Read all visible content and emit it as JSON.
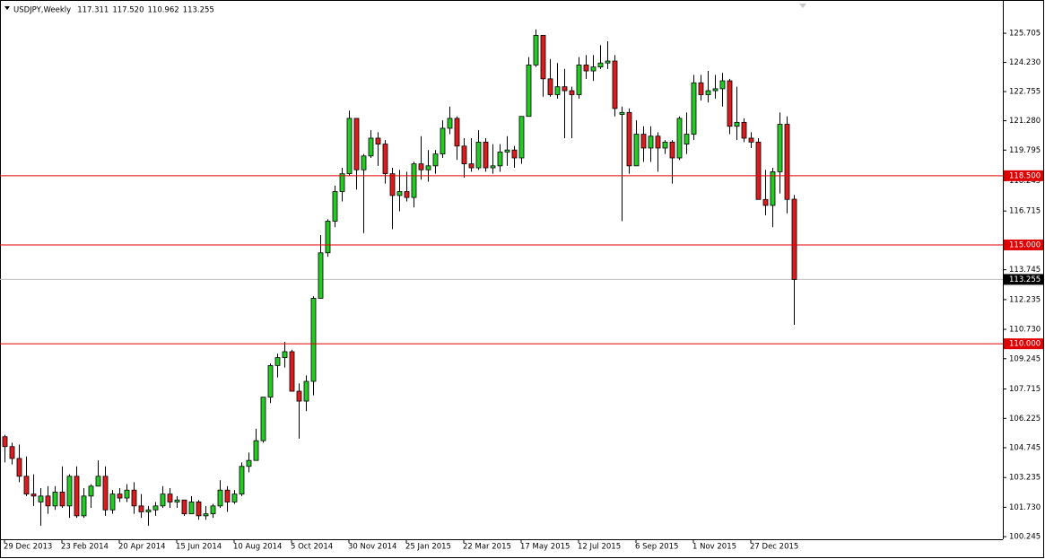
{
  "chart_data": {
    "type": "candlestick",
    "symbol": "USDJPY,Weekly",
    "header_ohlc": [
      "117.311",
      "117.520",
      "110.962",
      "113.255"
    ],
    "categories": [
      "29 Dec 2013",
      null,
      null,
      null,
      null,
      null,
      null,
      null,
      "23 Feb 2014",
      null,
      null,
      null,
      null,
      null,
      null,
      null,
      "20 Apr 2014",
      null,
      null,
      null,
      null,
      null,
      null,
      null,
      "15 Jun 2014",
      null,
      null,
      null,
      null,
      null,
      null,
      null,
      "10 Aug 2014",
      null,
      null,
      null,
      null,
      null,
      null,
      null,
      "5 Oct 2014",
      null,
      null,
      null,
      null,
      null,
      null,
      null,
      "30 Nov 2014",
      null,
      null,
      null,
      null,
      null,
      null,
      null,
      "25 Jan 2015",
      null,
      null,
      null,
      null,
      null,
      null,
      null,
      "22 Mar 2015",
      null,
      null,
      null,
      null,
      null,
      null,
      null,
      "17 May 2015",
      null,
      null,
      null,
      null,
      null,
      null,
      null,
      "12 Jul 2015",
      null,
      null,
      null,
      null,
      null,
      null,
      null,
      "6 Sep 2015",
      null,
      null,
      null,
      null,
      null,
      null,
      null,
      "1 Nov 2015",
      null,
      null,
      null,
      null,
      null,
      null,
      null,
      "27 Dec 2015",
      null,
      null,
      null,
      null,
      null,
      null
    ],
    "open": [
      105.3,
      104.8,
      104.2,
      103.3,
      102.4,
      102.0,
      102.3,
      101.8,
      102.5,
      101.8,
      103.3,
      101.3,
      102.3,
      102.8,
      103.3,
      101.6,
      102.4,
      102.2,
      102.6,
      101.8,
      101.5,
      101.6,
      101.8,
      102.4,
      102.0,
      102.1,
      101.4,
      102.0,
      101.3,
      101.4,
      101.8,
      102.6,
      102.0,
      102.4,
      103.8,
      104.1,
      105.1,
      107.3,
      108.9,
      109.3,
      109.6,
      107.6,
      107.1,
      108.1,
      112.3,
      114.6,
      116.2,
      117.7,
      118.6,
      121.4,
      118.8,
      119.5,
      120.4,
      120.1,
      118.6,
      117.5,
      117.7,
      117.4,
      119.1,
      118.8,
      119.0,
      119.6,
      120.9,
      121.4,
      120.0,
      119.1,
      118.9,
      120.2,
      118.9,
      119.0,
      119.7,
      119.8,
      119.4,
      121.5,
      124.1,
      125.6,
      123.4,
      122.6,
      123.0,
      122.8,
      122.6,
      124.1,
      123.8,
      124.0,
      124.2,
      124.3,
      121.6,
      121.7,
      119.0,
      120.6,
      119.9,
      120.5,
      119.9,
      120.2,
      119.4,
      120.1,
      120.6,
      123.2,
      122.6,
      122.8,
      122.9,
      123.3,
      121.0,
      121.2,
      120.4,
      120.2,
      117.3,
      117.0,
      118.7,
      121.1,
      117.311
    ],
    "high": [
      105.4,
      105.0,
      104.9,
      104.3,
      103.4,
      102.7,
      102.8,
      102.8,
      103.8,
      103.4,
      103.8,
      102.7,
      102.9,
      104.1,
      103.8,
      102.6,
      102.7,
      102.9,
      103.0,
      102.4,
      101.8,
      102.0,
      102.8,
      102.7,
      102.3,
      102.1,
      102.3,
      102.1,
      101.8,
      101.9,
      103.1,
      102.8,
      102.6,
      104.0,
      104.5,
      105.7,
      107.3,
      109.0,
      109.5,
      110.1,
      109.7,
      108.0,
      108.4,
      112.4,
      115.5,
      116.3,
      118.0,
      118.9,
      121.8,
      121.4,
      119.6,
      120.8,
      120.7,
      120.3,
      118.9,
      118.8,
      118.7,
      119.2,
      120.5,
      119.8,
      119.8,
      121.3,
      122.0,
      121.5,
      120.4,
      120.4,
      120.8,
      120.4,
      120.1,
      120.1,
      120.5,
      120.0,
      121.5,
      124.5,
      125.9,
      125.6,
      124.4,
      124.2,
      123.9,
      123.0,
      124.5,
      124.6,
      124.6,
      125.1,
      125.3,
      124.6,
      122.0,
      121.9,
      121.3,
      121.0,
      121.0,
      120.7,
      120.3,
      120.3,
      121.5,
      121.7,
      123.6,
      123.6,
      123.8,
      123.6,
      123.7,
      123.4,
      123.0,
      121.4,
      120.7,
      120.4,
      118.8,
      118.9,
      121.7,
      121.5,
      117.52
    ],
    "low": [
      104.0,
      103.9,
      103.0,
      102.3,
      101.8,
      100.8,
      101.4,
      101.6,
      101.7,
      101.2,
      101.2,
      101.2,
      101.7,
      102.8,
      101.3,
      101.4,
      102.0,
      102.0,
      101.4,
      101.2,
      100.8,
      101.3,
      101.7,
      101.7,
      101.7,
      101.3,
      101.4,
      101.1,
      101.1,
      101.2,
      101.7,
      101.5,
      101.9,
      102.3,
      103.5,
      104.1,
      105.0,
      107.0,
      108.3,
      108.8,
      107.6,
      105.2,
      106.6,
      107.4,
      112.3,
      114.4,
      115.9,
      117.2,
      118.5,
      117.8,
      115.6,
      119.4,
      119.0,
      118.1,
      115.8,
      116.7,
      117.2,
      116.9,
      118.3,
      118.2,
      118.6,
      119.4,
      120.6,
      119.3,
      118.4,
      118.7,
      118.8,
      118.7,
      118.6,
      118.7,
      119.0,
      118.9,
      119.1,
      121.5,
      124.0,
      122.5,
      122.5,
      122.4,
      120.4,
      120.4,
      122.4,
      123.4,
      123.3,
      123.9,
      123.9,
      121.5,
      116.2,
      118.6,
      119.0,
      119.2,
      119.2,
      118.7,
      119.6,
      118.1,
      119.3,
      119.6,
      120.3,
      122.3,
      122.2,
      122.4,
      122.0,
      120.6,
      120.3,
      120.2,
      119.9,
      117.3,
      116.5,
      115.9,
      117.6,
      116.6,
      110.962
    ],
    "close": [
      104.8,
      104.2,
      103.3,
      102.4,
      102.3,
      102.3,
      101.8,
      102.5,
      101.8,
      103.3,
      101.3,
      102.3,
      102.8,
      103.3,
      101.6,
      102.4,
      102.2,
      102.6,
      101.8,
      101.5,
      101.6,
      101.8,
      102.4,
      102.0,
      102.1,
      101.4,
      102.0,
      101.3,
      101.4,
      101.8,
      102.6,
      102.0,
      102.4,
      103.8,
      104.1,
      105.1,
      107.3,
      108.9,
      109.3,
      109.6,
      107.6,
      107.1,
      108.1,
      112.3,
      114.6,
      116.2,
      117.7,
      118.6,
      121.4,
      118.8,
      119.5,
      120.4,
      120.1,
      118.6,
      117.5,
      117.7,
      117.4,
      119.1,
      118.8,
      119.0,
      119.6,
      120.9,
      121.4,
      120.0,
      119.1,
      118.9,
      120.2,
      118.9,
      119.0,
      119.7,
      119.8,
      119.4,
      121.5,
      124.1,
      125.6,
      123.4,
      122.6,
      123.0,
      122.8,
      122.6,
      124.1,
      123.8,
      124.0,
      124.2,
      124.3,
      121.9,
      121.7,
      119.0,
      120.6,
      119.9,
      120.5,
      119.9,
      120.2,
      119.4,
      121.4,
      120.6,
      123.2,
      122.6,
      122.8,
      122.9,
      123.3,
      121.0,
      121.2,
      120.4,
      120.2,
      117.3,
      117.0,
      118.7,
      121.1,
      117.3,
      113.255
    ],
    "up_color": "#22cc22",
    "down_color": "#e01b1b",
    "ylim": [
      100.114,
      127.387
    ],
    "yticks": [
      {
        "value": 125.705,
        "label": "125.705"
      },
      {
        "value": 124.23,
        "label": "124.230"
      },
      {
        "value": 122.755,
        "label": "122.755"
      },
      {
        "value": 121.28,
        "label": "121.280"
      },
      {
        "value": 119.795,
        "label": "119.795"
      },
      {
        "value": 118.245,
        "label": "118.245"
      },
      {
        "value": 116.715,
        "label": "116.715"
      },
      {
        "value": 113.745,
        "label": "113.745"
      },
      {
        "value": 112.235,
        "label": "112.235"
      },
      {
        "value": 110.73,
        "label": "110.730"
      },
      {
        "value": 109.245,
        "label": "109.245"
      },
      {
        "value": 107.715,
        "label": "107.715"
      },
      {
        "value": 106.225,
        "label": "106.225"
      },
      {
        "value": 104.745,
        "label": "104.745"
      },
      {
        "value": 103.235,
        "label": "103.235"
      },
      {
        "value": 101.73,
        "label": "101.730"
      },
      {
        "value": 100.245,
        "label": "100.245"
      }
    ],
    "hlines": [
      {
        "value": 118.5,
        "label": "118.500",
        "color": "#e00000"
      },
      {
        "value": 115,
        "label": "115.000",
        "color": "#e00000"
      },
      {
        "value": 110,
        "label": "110.000",
        "color": "#e00000"
      }
    ],
    "current": {
      "value": 113.255,
      "label": "113.255",
      "color": "#c0c0c0"
    }
  }
}
